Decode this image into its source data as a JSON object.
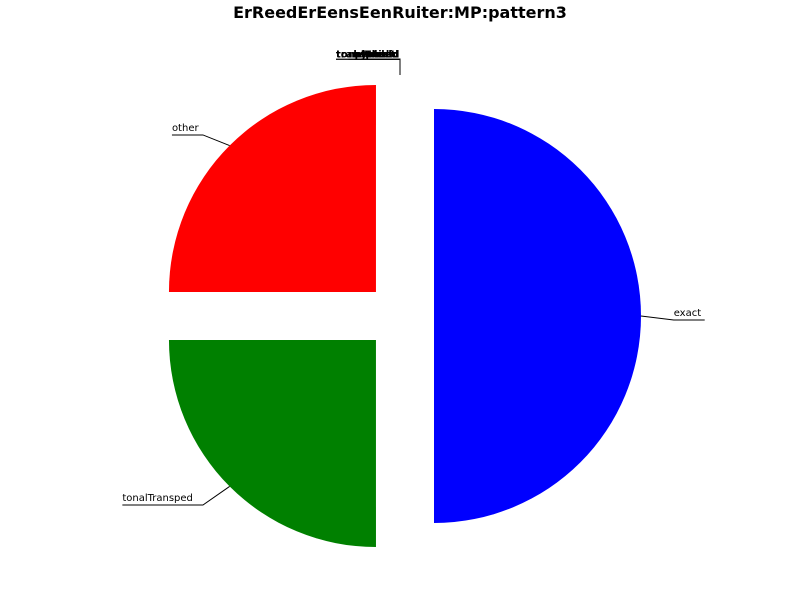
{
  "chart_data": {
    "type": "pie",
    "title": "ErReedErEensEenRuiter:MP:pattern3",
    "slices": [
      {
        "label": "other",
        "value": 25,
        "color": "#ff0000",
        "explode": true
      },
      {
        "label": "tonalTransped",
        "value": 25,
        "color": "#008000",
        "explode": true
      },
      {
        "label": "exact",
        "value": 50,
        "color": "#0000ff",
        "explode": true
      },
      {
        "label": "transposed",
        "value": 0,
        "color": "#00bfbf",
        "explode": true
      },
      {
        "label": "tonalExact",
        "value": 0,
        "color": "#bf00bf",
        "explode": true
      },
      {
        "label": "rhythmic",
        "value": 0,
        "color": "#bfbf00",
        "explode": true
      },
      {
        "label": "melodic",
        "value": 0,
        "color": "#000000",
        "explode": true
      },
      {
        "label": "Folded",
        "value": 0,
        "color": "#ff0000",
        "explode": true
      },
      {
        "label": "partial",
        "value": 0,
        "color": "#008000",
        "explode": true
      }
    ],
    "legend": "none"
  }
}
